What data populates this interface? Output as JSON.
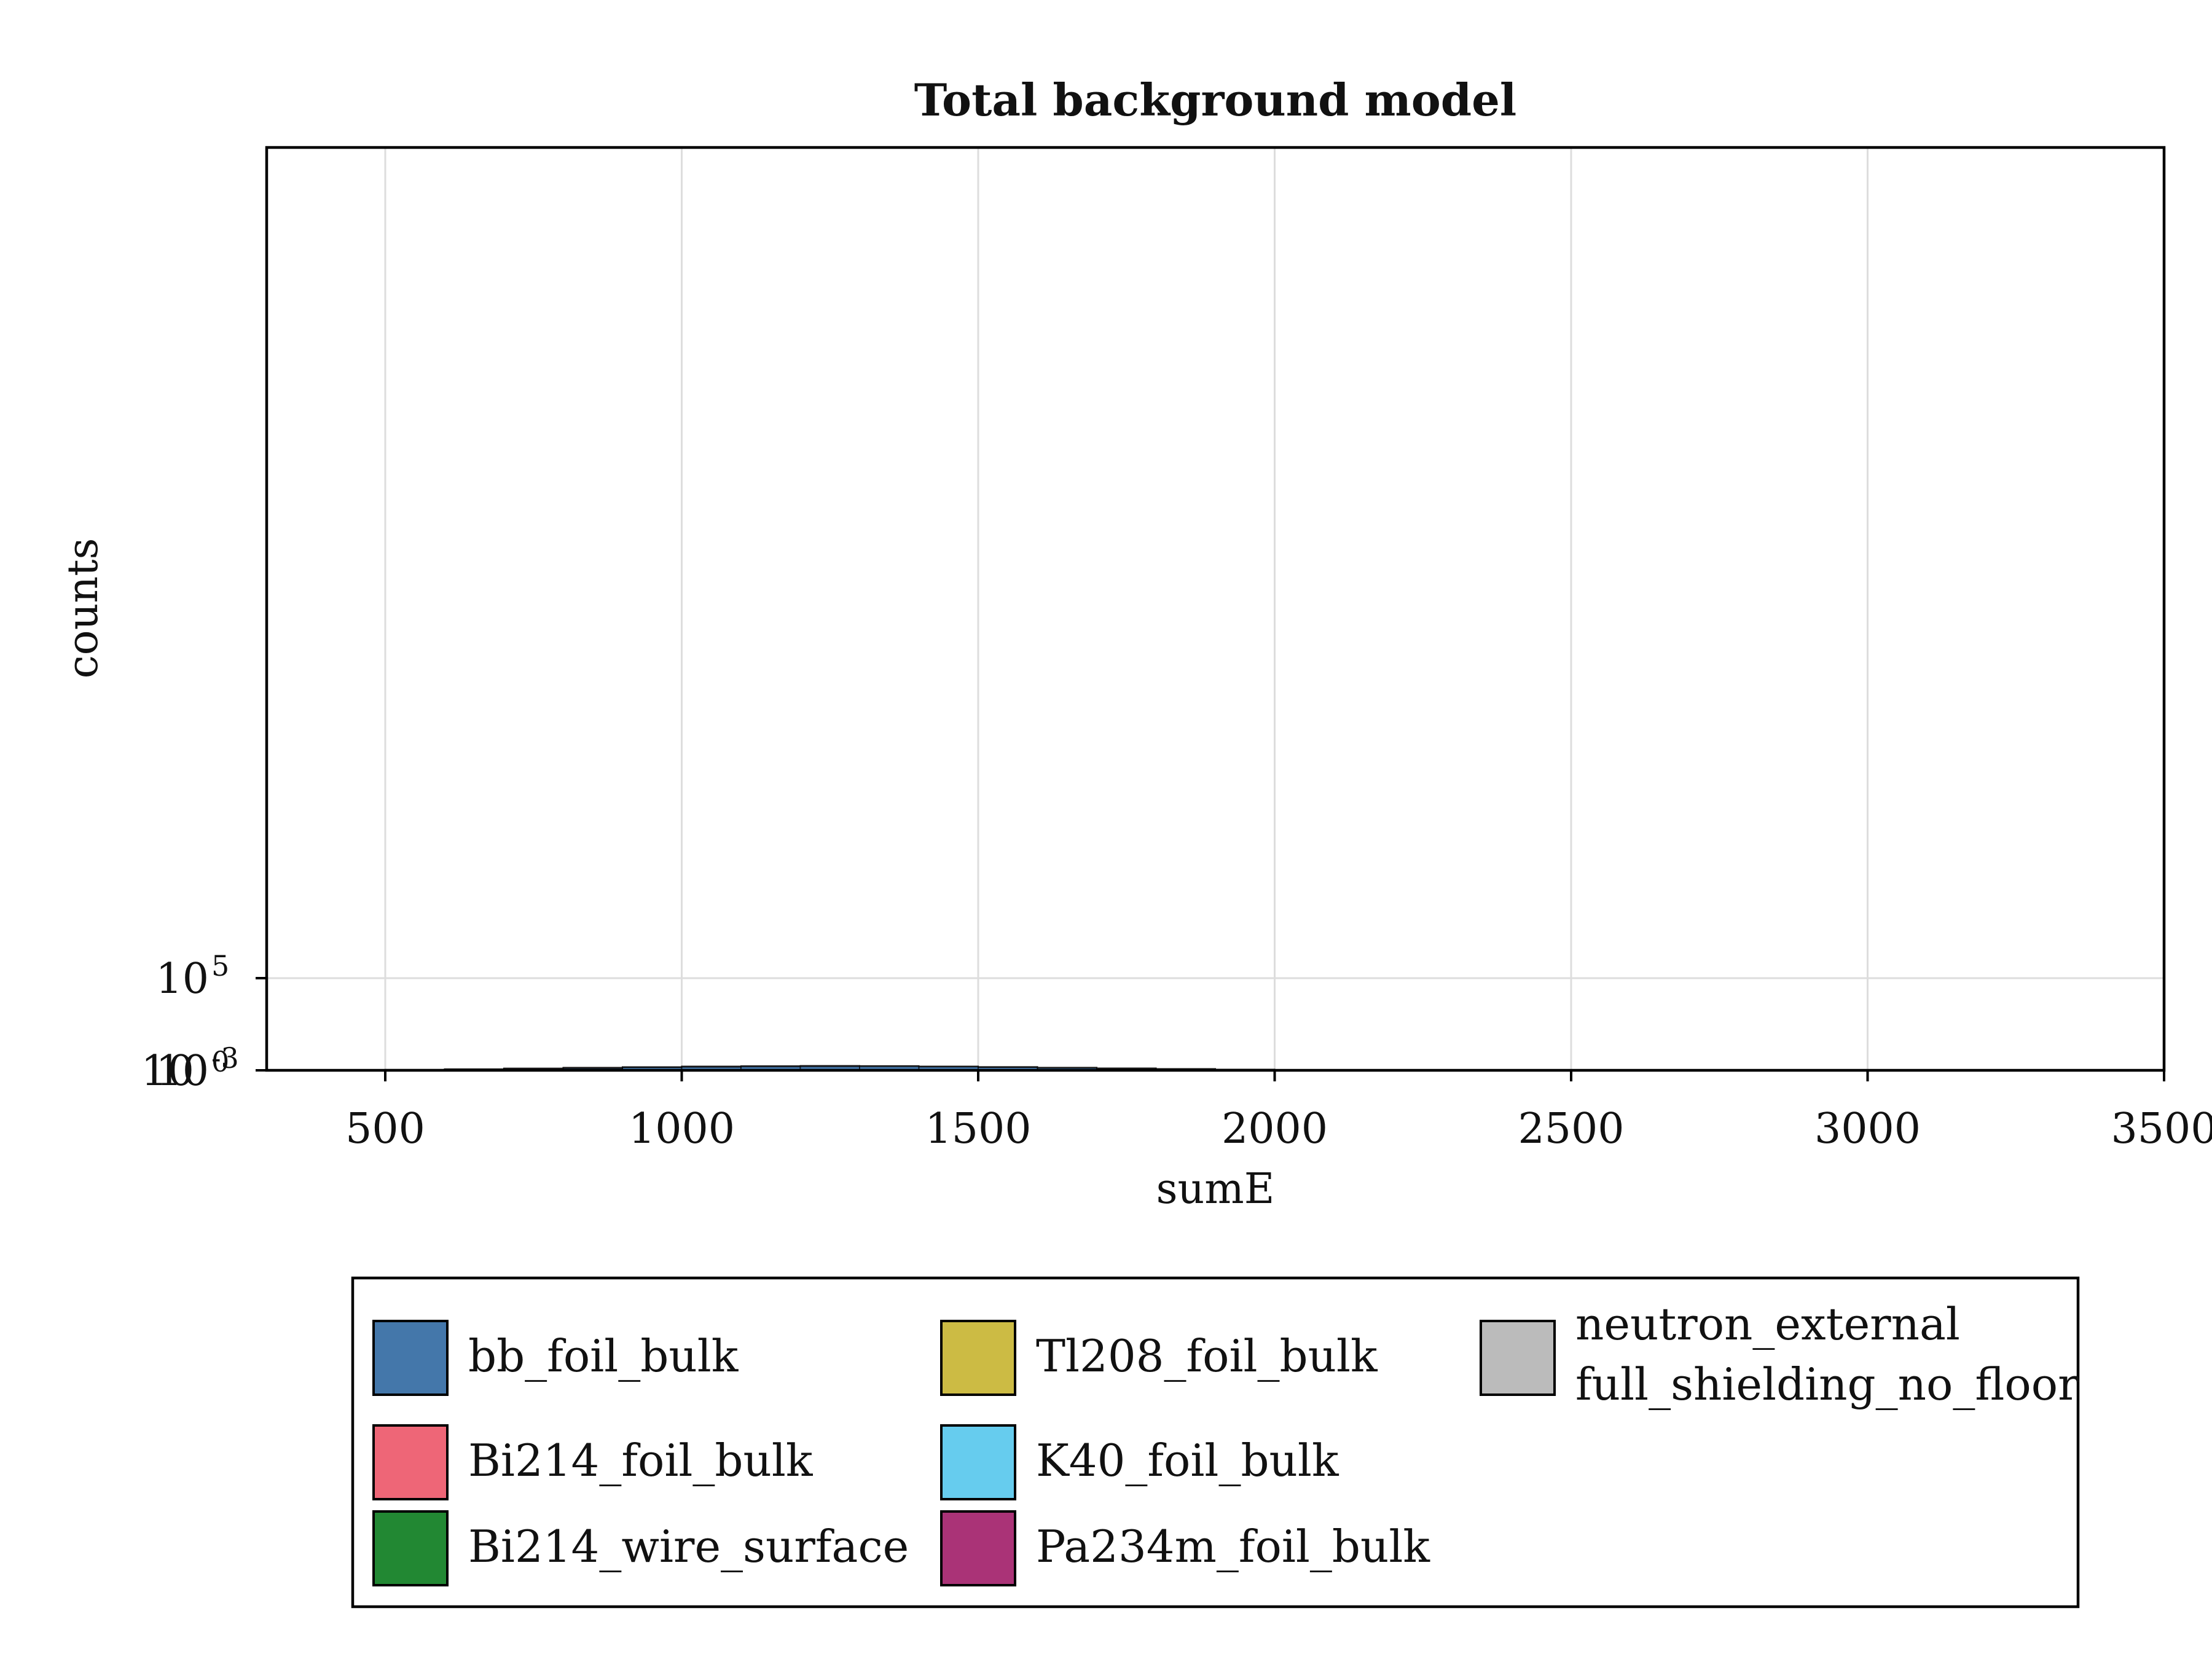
{
  "chart_data": {
    "type": "area",
    "title": "Total background model",
    "xlabel": "sumE",
    "ylabel": "counts",
    "xlim": [
      300,
      3500
    ],
    "ylim": [
      0,
      1000000
    ],
    "x_ticks": [
      500,
      1000,
      1500,
      2000,
      2500,
      3000,
      3500
    ],
    "x_tick_labels": [
      "500",
      "1000",
      "1500",
      "2000",
      "2500",
      "3000",
      "3500"
    ],
    "y_ticks": [
      {
        "value": 0,
        "base": "10",
        "exp": "-3",
        "overlap_exp": "0"
      },
      {
        "value": 100000,
        "base": "10",
        "exp": "5"
      }
    ],
    "grid": true,
    "legend_placement": "below",
    "stacked": true,
    "bin_edges": [
      400,
      500,
      600,
      700,
      800,
      900,
      1000,
      1100,
      1200,
      1300,
      1400,
      1500,
      1600,
      1700,
      1800,
      1900,
      2000,
      2100,
      2200,
      2300,
      2400,
      2500
    ],
    "series": [
      {
        "name": "bb_foil_bulk",
        "color": "#4477aa",
        "values": [
          200,
          600,
          1200,
          2000,
          2800,
          3600,
          4200,
          4600,
          4800,
          4700,
          4300,
          3700,
          3000,
          2300,
          1600,
          1000,
          600,
          300,
          150,
          60,
          20
        ]
      },
      {
        "name": "Bi214_foil_bulk",
        "color": "#ee6677",
        "values": [
          5,
          8,
          10,
          12,
          12,
          12,
          11,
          10,
          9,
          8,
          7,
          6,
          5,
          4,
          4,
          3,
          3,
          2,
          2,
          1,
          1
        ]
      },
      {
        "name": "Bi214_wire_surface",
        "color": "#228833",
        "values": [
          3,
          5,
          6,
          7,
          7,
          7,
          6,
          6,
          5,
          5,
          4,
          4,
          3,
          3,
          2,
          2,
          2,
          1,
          1,
          1,
          1
        ]
      },
      {
        "name": "Tl208_foil_bulk",
        "color": "#ccbb44",
        "values": [
          1,
          2,
          2,
          2,
          2,
          2,
          2,
          2,
          2,
          2,
          1,
          1,
          1,
          1,
          1,
          1,
          1,
          1,
          1,
          0,
          0
        ]
      },
      {
        "name": "K40_foil_bulk",
        "color": "#66ccee",
        "values": [
          40,
          60,
          70,
          60,
          40,
          20,
          10,
          4,
          1,
          0,
          0,
          0,
          0,
          0,
          0,
          0,
          0,
          0,
          0,
          0,
          0
        ]
      },
      {
        "name": "Pa234m_foil_bulk",
        "color": "#aa3377",
        "values": [
          60,
          80,
          80,
          70,
          50,
          30,
          15,
          6,
          2,
          0,
          0,
          0,
          0,
          0,
          0,
          0,
          0,
          0,
          0,
          0,
          0
        ]
      },
      {
        "name": "neutron_external\nfull_shielding_no_floor",
        "color": "#bbbbbb",
        "values": [
          1,
          1,
          1,
          1,
          1,
          1,
          1,
          1,
          1,
          1,
          1,
          1,
          1,
          1,
          1,
          1,
          1,
          1,
          1,
          1,
          1
        ]
      }
    ]
  }
}
